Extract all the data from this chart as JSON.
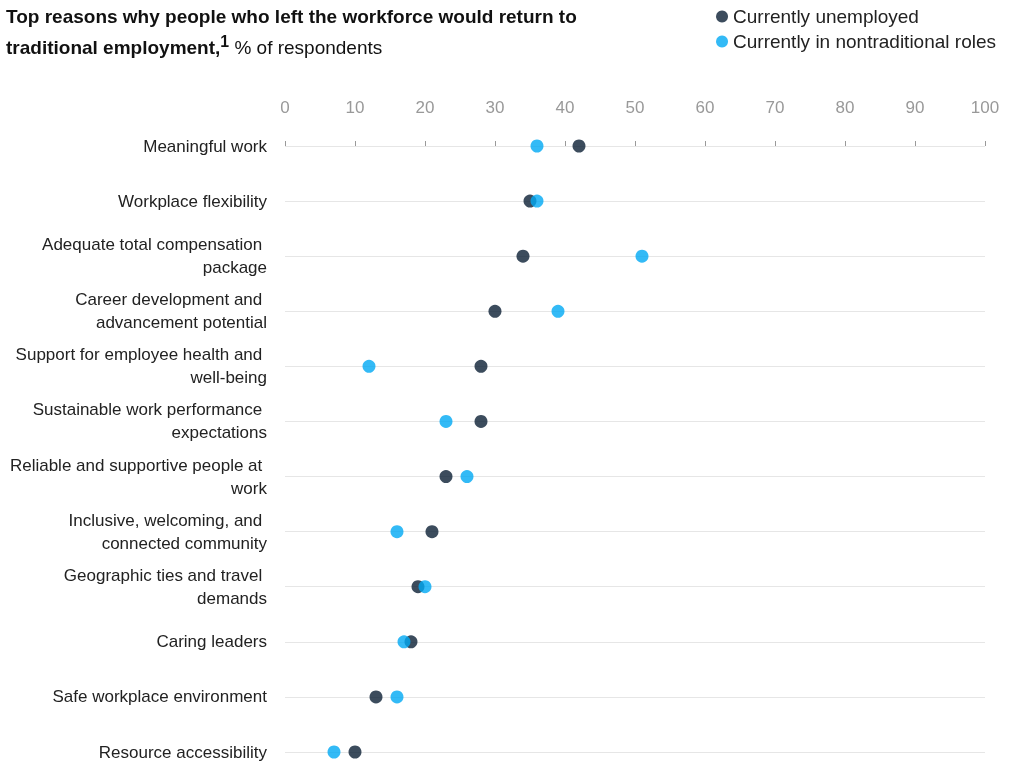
{
  "chart_data": {
    "type": "scatter",
    "title": "Top reasons why people who left the workforce would return to traditional employment,$^{1}$",
    "subtitle": "% of respondents",
    "categories": [
      "Meaningful work",
      "Workplace flexibility",
      "Adequate total compensation package",
      "Career development and advancement potential",
      "Support for employee health and well-being",
      "Sustainable work performance expectations",
      "Reliable and supportive people at work",
      "Inclusive, welcoming, and connected community",
      "Geographic ties and travel demands",
      "Caring leaders",
      "Safe workplace environment",
      "Resource accessibility"
    ],
    "series": [
      {
        "name": "Currently unemployed",
        "color": "#0b1f35",
        "values": [
          42,
          35,
          34,
          30,
          28,
          28,
          23,
          21,
          19,
          18,
          13,
          10
        ]
      },
      {
        "name": "Currently in nontraditional roles",
        "color": "#00a9f4",
        "values": [
          36,
          36,
          51,
          39,
          12,
          23,
          26,
          16,
          20,
          17,
          16,
          7
        ]
      }
    ],
    "orientation": "horizontal",
    "xlim": [
      0,
      100
    ],
    "xticks": [
      0,
      10,
      20,
      30,
      40,
      50,
      60,
      70,
      80,
      90,
      100
    ],
    "grid": "y",
    "legend": "top right",
    "marker": "circle"
  }
}
